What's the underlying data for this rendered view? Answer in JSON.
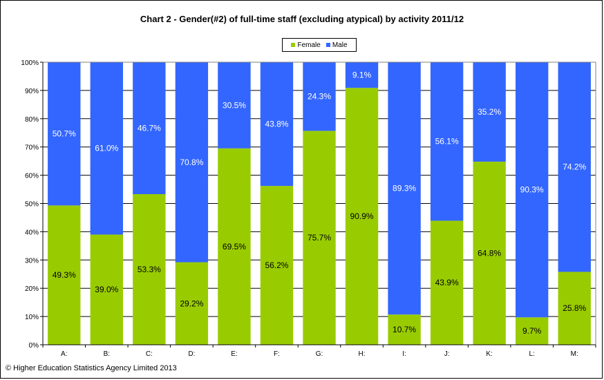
{
  "chart_data": {
    "type": "bar",
    "stacked": true,
    "title": "Chart 2 - Gender(#2) of full-time staff (excluding atypical) by activity 2011/12",
    "categories": [
      "A:",
      "B:",
      "C:",
      "D:",
      "E:",
      "F:",
      "G:",
      "H:",
      "I:",
      "J:",
      "K:",
      "L:",
      "M:"
    ],
    "series": [
      {
        "name": "Female",
        "color": "#99CC00",
        "values": [
          49.3,
          39.0,
          53.3,
          29.2,
          69.5,
          56.2,
          75.7,
          90.9,
          10.7,
          43.9,
          64.8,
          9.7,
          25.8
        ],
        "labels": [
          "49.3%",
          "39.0%",
          "53.3%",
          "29.2%",
          "69.5%",
          "56.2%",
          "75.7%",
          "90.9%",
          "10.7%",
          "43.9%",
          "64.8%",
          "9.7%",
          "25.8%"
        ]
      },
      {
        "name": "Male",
        "color": "#3366FF",
        "values": [
          50.7,
          61.0,
          46.7,
          70.8,
          30.5,
          43.8,
          24.3,
          9.1,
          89.3,
          56.1,
          35.2,
          90.3,
          74.2
        ],
        "labels": [
          "50.7%",
          "61.0%",
          "46.7%",
          "70.8%",
          "30.5%",
          "43.8%",
          "24.3%",
          "9.1%",
          "89.3%",
          "56.1%",
          "35.2%",
          "90.3%",
          "74.2%"
        ]
      }
    ],
    "ylim": [
      0,
      100
    ],
    "yticks": [
      "0%",
      "10%",
      "20%",
      "30%",
      "40%",
      "50%",
      "60%",
      "70%",
      "80%",
      "90%",
      "100%"
    ],
    "grid": true,
    "legend_position": "top"
  },
  "footer": {
    "copyright": "© Higher Education Statistics Agency Limited 2013"
  }
}
